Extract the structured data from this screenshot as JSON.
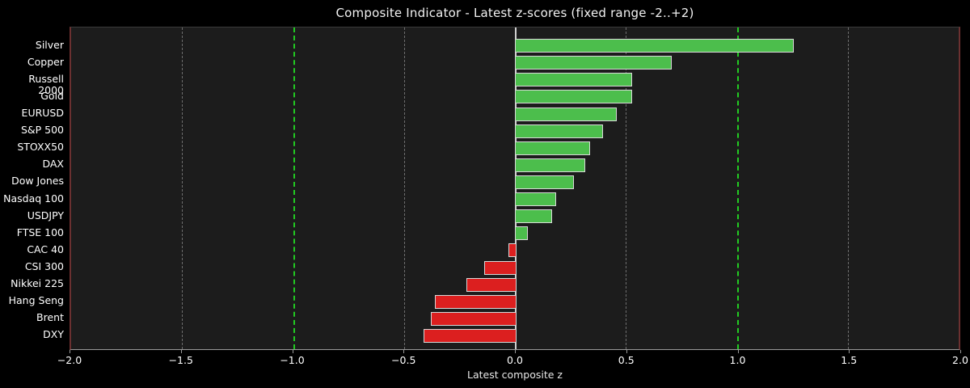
{
  "chart_data": {
    "type": "bar",
    "orientation": "horizontal",
    "title": "Composite Indicator - Latest z-scores (fixed range -2..+2)",
    "xlabel": "Latest composite z",
    "categories": [
      "Silver",
      "Copper",
      "Russell 2000",
      "Gold",
      "EURUSD",
      "S&P 500",
      "STOXX50",
      "DAX",
      "Dow Jones",
      "Nasdaq 100",
      "USDJPY",
      "FTSE 100",
      "CAC 40",
      "CSI 300",
      "Nikkei 225",
      "Hang Seng",
      "Brent",
      "DXY"
    ],
    "values": [
      1.25,
      0.7,
      0.52,
      0.52,
      0.45,
      0.39,
      0.33,
      0.31,
      0.26,
      0.18,
      0.16,
      0.05,
      -0.03,
      -0.14,
      -0.22,
      -0.36,
      -0.38,
      -0.41
    ],
    "xlim": [
      -2.0,
      2.0
    ],
    "xtick_values": [
      -2.0,
      -1.5,
      -1.0,
      -0.5,
      0.0,
      0.5,
      1.0,
      1.5,
      2.0
    ],
    "xtick_labels": [
      "−2.0",
      "−1.5",
      "−1.0",
      "−0.5",
      "0.0",
      "0.5",
      "1.0",
      "1.5",
      "2.0"
    ],
    "gridlines_gray": [
      -1.5,
      -0.5,
      0.5,
      1.5
    ],
    "threshold_lines": [
      -1.0,
      1.0
    ],
    "zero_line": 0.0,
    "grid": "vertical-dashed",
    "legend": null,
    "colors": {
      "positive": "#4CBE4C",
      "negative": "#DC1F1F",
      "bar_edge": "#D8D8D8",
      "threshold": "#22CC22",
      "grid": "#777777",
      "zero_line": "#CFCFCF",
      "plot_bg": "#1C1C1C",
      "fig_bg": "#000000",
      "text": "#FFFFFF",
      "spine_left_right": "#6B3030",
      "spine_top": "#3A3A3A",
      "spine_bottom": "#999999"
    }
  }
}
